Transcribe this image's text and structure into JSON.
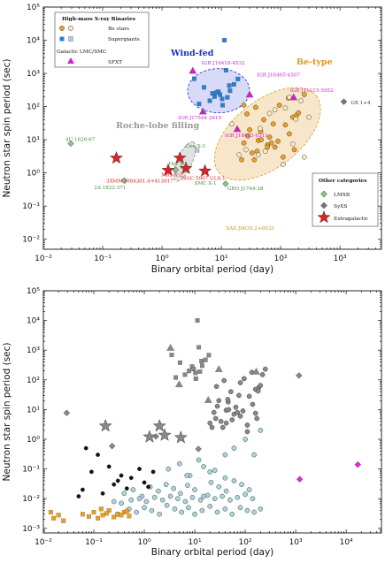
{
  "chart_data": [
    {
      "type": "scatter",
      "xlabel": "Binary orbital period (day)",
      "ylabel": "Neutron star spin period (sec)",
      "xscale": "log",
      "yscale": "log",
      "xlim": [
        0.01,
        5000
      ],
      "ylim": [
        0.005,
        100000
      ],
      "xticks": [
        "10⁻²",
        "10⁻¹",
        "10⁰",
        "10¹",
        "10²",
        "10³"
      ],
      "yticks": [
        "10⁻²",
        "10⁻¹",
        "10⁰",
        "10¹",
        "10²",
        "10³",
        "10⁴",
        "10⁵"
      ],
      "legend_main": {
        "title": "High-mass X-ray Binaries",
        "galactic_label": "Galactic LMC/SMC",
        "entries": [
          "Be stars",
          "Supergiants",
          "SFXT"
        ]
      },
      "legend_other": {
        "title": "Other categories",
        "entries": [
          "LMXB",
          "SyXS",
          "Extragalactic"
        ]
      },
      "regions": [
        {
          "name": "Wind-fed",
          "color": "#1a2bd6"
        },
        {
          "name": "Be-type",
          "color": "#e09420"
        },
        {
          "name": "Roche-lobe filling",
          "color": "#999999"
        }
      ],
      "annotations": [
        {
          "text": "IGR J16418-4532",
          "color": "#cc22cc",
          "x": 13,
          "y": 1200
        },
        {
          "text": "IGR J16465-4507",
          "color": "#cc22cc",
          "x": 30,
          "y": 500
        },
        {
          "text": "IGR J11215-5952",
          "color": "#cc22cc",
          "x": 165,
          "y": 190
        },
        {
          "text": "IGR J17544-2619",
          "color": "#cc22cc",
          "x": 4.9,
          "y": 71
        },
        {
          "text": "IGR J18483-0311",
          "color": "#cc22cc",
          "x": 18.5,
          "y": 21
        },
        {
          "text": "GX 1+4",
          "color": "#333333",
          "x": 1160,
          "y": 140
        },
        {
          "text": "4U 1626-67",
          "color": "#3c8c3c",
          "x": 0.029,
          "y": 7.7
        },
        {
          "text": "Her X-1",
          "color": "#3c8c3c",
          "x": 1.7,
          "y": 1.24
        },
        {
          "text": "Cen X-3",
          "color": "#3c8c3c",
          "x": 2.1,
          "y": 4.8
        },
        {
          "text": "SMC X-1",
          "color": "#3c8c3c",
          "x": 3.9,
          "y": 0.71
        },
        {
          "text": "GRO J1744-28",
          "color": "#3c8c3c",
          "x": 11.8,
          "y": 0.47
        },
        {
          "text": "2A 1822-371",
          "color": "#3c8c3c",
          "x": 0.23,
          "y": 0.59
        },
        {
          "text": "M82 X-2",
          "color": "#dd1111",
          "x": 2.53,
          "y": 1.37
        },
        {
          "text": "NGC 5907 ULX-1",
          "color": "#dd1111",
          "x": 5.3,
          "y": 1.14
        },
        {
          "text": "3XMM J004301.4+413017",
          "color": "#dd1111",
          "x": 1.27,
          "y": 1.2
        },
        {
          "text": "SAX J0635.2+0533",
          "color": "#d68a00",
          "x": 11.2,
          "y": 0.034
        }
      ],
      "series": [
        {
          "name": "Be stars",
          "marker": "circle",
          "color": "#f0a020",
          "x": [
            24,
            28,
            33,
            36,
            42,
            46,
            60,
            65,
            75,
            90,
            110,
            140,
            170,
            185,
            200,
            22,
            30,
            52,
            80,
            120,
            250,
            27,
            38,
            47,
            70,
            95,
            135,
            160,
            24,
            40,
            60
          ],
          "y": [
            8,
            13,
            4,
            2.5,
            9.5,
            18,
            7,
            12,
            30,
            9,
            3,
            15,
            5,
            55,
            65,
            2.5,
            20,
            40,
            6,
            28,
            230,
            60,
            95,
            10,
            8,
            110,
            180,
            48,
            110,
            4.5,
            6
          ]
        },
        {
          "name": "Be stars (LMC/SMC)",
          "marker": "circle",
          "color": "#fce8c0",
          "x": [
            20,
            26,
            42,
            55,
            110,
            160,
            220,
            80,
            45,
            180,
            120,
            250,
            300,
            140,
            15,
            65
          ],
          "y": [
            3.5,
            5,
            3.5,
            4.5,
            1.8,
            7.5,
            150,
            80,
            22,
            42,
            90,
            3,
            48,
            190,
            30,
            62
          ]
        },
        {
          "name": "Supergiants",
          "marker": "square",
          "color": "#2c7fd6",
          "x": [
            3.5,
            4.2,
            5.1,
            7.7,
            8.9,
            10.5,
            11.3,
            12,
            12.6,
            13.6,
            16.3,
            19,
            9.5,
            6.4,
            14,
            10.3,
            8.4,
            7.1
          ],
          "y": [
            690,
            120,
            380,
            200,
            280,
            110,
            10000,
            1250,
            190,
            430,
            470,
            680,
            230,
            150,
            300,
            170,
            270,
            250
          ]
        },
        {
          "name": "Supergiants (LMC/SMC)",
          "marker": "square",
          "color": "#a8cce8",
          "x": [
            3.9
          ],
          "y": [
            4.8
          ]
        },
        {
          "name": "SFXT",
          "marker": "triangle",
          "color": "#cc22cc",
          "x": [
            3.3,
            4.9,
            18.5,
            30,
            165
          ],
          "y": [
            1200,
            71,
            21,
            230,
            190
          ]
        },
        {
          "name": "LMXB",
          "marker": "diamond",
          "color": "#88c488",
          "x": [
            0.029,
            0.23,
            1.7,
            11.8
          ],
          "y": [
            7.7,
            0.59,
            1.24,
            0.47
          ]
        },
        {
          "name": "SyXS",
          "marker": "diamond",
          "color": "#777777",
          "x": [
            1160
          ],
          "y": [
            140
          ]
        },
        {
          "name": "Extragalactic",
          "marker": "star",
          "color": "#dd2222",
          "x": [
            0.17,
            1.27,
            2.0,
            2.53,
            5.3
          ],
          "y": [
            2.8,
            1.2,
            2.8,
            1.37,
            1.14
          ]
        }
      ]
    },
    {
      "type": "scatter",
      "xlabel": "Binary orbital period (day)",
      "ylabel": "Neutron star spin period (sec)",
      "xscale": "log",
      "yscale": "log",
      "xlim": [
        0.01,
        50000
      ],
      "ylim": [
        0.0007,
        100000
      ],
      "xticks": [
        "10⁻²",
        "10⁻¹",
        "10⁰",
        "10¹",
        "10²",
        "10³",
        "10⁴"
      ],
      "yticks": [
        "10⁻³",
        "10⁻²",
        "10⁻¹",
        "10⁰",
        "10¹",
        "10²",
        "10³",
        "10⁴",
        "10⁵"
      ],
      "series": [
        {
          "marker": "circle",
          "color": "#a8d4dc",
          "x": [
            0.3,
            0.5,
            0.7,
            1.0,
            1.4,
            2.0,
            2.8,
            4.0,
            5.5,
            7.5,
            10,
            14,
            20,
            28,
            40,
            55,
            80,
            110,
            150,
            200,
            0.4,
            0.6,
            0.9,
            1.3,
            1.9,
            2.7,
            3.8,
            5.2,
            7.2,
            10,
            15,
            21,
            30,
            42,
            60,
            85,
            120,
            0.25,
            0.35,
            0.55,
            0.8,
            1.1,
            1.6,
            2.3,
            3.3,
            4.6,
            6.5,
            9,
            13,
            18,
            25,
            35,
            50,
            70,
            100,
            140,
            3,
            5,
            8,
            12,
            20,
            40,
            60,
            100,
            150,
            200,
            7,
            15,
            25,
            40
          ],
          "y": [
            0.003,
            0.0045,
            0.0035,
            0.005,
            0.004,
            0.003,
            0.006,
            0.0045,
            0.0035,
            0.005,
            0.003,
            0.004,
            0.0055,
            0.0035,
            0.0045,
            0.003,
            0.005,
            0.004,
            0.0035,
            0.0045,
            0.015,
            0.02,
            0.012,
            0.025,
            0.018,
            0.03,
            0.022,
            0.015,
            0.028,
            0.02,
            0.012,
            0.035,
            0.025,
            0.018,
            0.04,
            0.03,
            0.02,
            0.008,
            0.007,
            0.009,
            0.01,
            0.008,
            0.011,
            0.009,
            0.012,
            0.01,
            0.008,
            0.011,
            0.009,
            0.013,
            0.01,
            0.012,
            0.009,
            0.011,
            0.014,
            0.01,
            0.1,
            0.15,
            0.06,
            0.2,
            0.08,
            0.3,
            0.5,
            1.0,
            0.3,
            2.0,
            0.06,
            0.12,
            0.09,
            0.05
          ]
        },
        {
          "marker": "square",
          "color": "#e8a020",
          "x": [
            0.014,
            0.016,
            0.02,
            0.025,
            0.06,
            0.08,
            0.1,
            0.12,
            0.15,
            0.2,
            0.25,
            0.3,
            0.4,
            0.5,
            0.14,
            0.18,
            0.35,
            0.45
          ],
          "y": [
            0.0035,
            0.0022,
            0.0028,
            0.0018,
            0.003,
            0.0025,
            0.0035,
            0.0022,
            0.0028,
            0.004,
            0.0024,
            0.003,
            0.0035,
            0.0026,
            0.0045,
            0.0032,
            0.0028,
            0.0038
          ]
        },
        {
          "marker": "circle",
          "color": "#111111",
          "x": [
            0.07,
            0.09,
            0.12,
            0.15,
            0.2,
            0.25,
            0.35,
            0.05,
            0.06,
            0.55,
            0.8,
            1.0,
            1.2,
            1.5,
            0.45,
            0.3
          ],
          "y": [
            0.5,
            0.08,
            0.3,
            0.015,
            0.12,
            0.03,
            0.06,
            0.012,
            0.02,
            0.05,
            0.1,
            0.035,
            0.025,
            0.08,
            0.022,
            0.04
          ]
        },
        {
          "marker": "square",
          "color": "#888888",
          "x": [
            3.5,
            4.2,
            5.1,
            7.7,
            8.9,
            10.5,
            11.3,
            12,
            12.6,
            13.6,
            16.3,
            19,
            9.5,
            6.4,
            14,
            10.3
          ],
          "y": [
            690,
            120,
            380,
            200,
            280,
            110,
            10000,
            1250,
            190,
            430,
            470,
            680,
            230,
            150,
            300,
            170
          ]
        },
        {
          "marker": "circle",
          "color": "#888888",
          "x": [
            24,
            28,
            33,
            36,
            42,
            46,
            60,
            65,
            75,
            90,
            110,
            140,
            170,
            185,
            200,
            22,
            30,
            52,
            80,
            120,
            250,
            27,
            38,
            47,
            70,
            95,
            135,
            160,
            20,
            26,
            42,
            55,
            110,
            160,
            220,
            80,
            45,
            180
          ],
          "y": [
            8,
            13,
            4,
            2.5,
            9.5,
            18,
            7,
            12,
            30,
            9,
            3,
            15,
            5,
            55,
            65,
            2.5,
            20,
            40,
            6,
            28,
            230,
            60,
            95,
            10,
            8,
            110,
            180,
            48,
            3.5,
            5,
            3.5,
            4.5,
            1.8,
            7.5,
            150,
            80,
            22,
            42
          ]
        },
        {
          "marker": "triangle",
          "color": "#888888",
          "x": [
            3.3,
            4.9,
            18.5,
            30,
            165
          ],
          "y": [
            1200,
            71,
            21,
            230,
            190
          ]
        },
        {
          "marker": "diamond",
          "color": "#888888",
          "x": [
            0.029,
            0.23,
            1.7,
            11.8,
            1160
          ],
          "y": [
            7.7,
            0.59,
            1.24,
            0.47,
            140
          ]
        },
        {
          "marker": "star",
          "color": "#888888",
          "x": [
            0.17,
            1.27,
            2.0,
            2.53,
            5.3
          ],
          "y": [
            2.8,
            1.2,
            2.8,
            1.37,
            1.14
          ]
        },
        {
          "marker": "diamond",
          "color": "#ee22ee",
          "x": [
            1200,
            17000
          ],
          "y": [
            0.045,
            0.14
          ]
        }
      ]
    }
  ]
}
